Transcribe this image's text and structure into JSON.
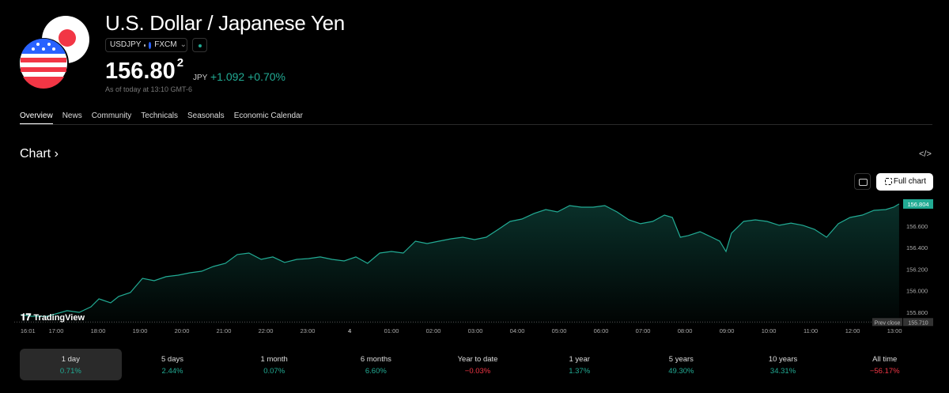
{
  "header": {
    "title": "U.S. Dollar / Japanese Yen",
    "symbol": "USDJPY",
    "exchange": "FXCM",
    "price": "156.80",
    "price_sup": "2",
    "currency": "JPY",
    "change": "+1.092",
    "change_pct": "+0.70%",
    "as_of": "As of today at 13:10 GMT-6"
  },
  "tabs": [
    "Overview",
    "News",
    "Community",
    "Technicals",
    "Seasonals",
    "Economic Calendar"
  ],
  "chart_section": {
    "title": "Chart",
    "full_chart": "Full chart",
    "logo": "TradingView"
  },
  "chart_data": {
    "type": "area",
    "color": "#22ab94",
    "x": [
      0.15,
      0.42,
      0.79,
      1.26,
      1.55,
      1.83,
      2.02,
      2.3,
      2.49,
      2.77,
      3.06,
      3.34,
      3.62,
      3.91,
      4.19,
      4.47,
      4.75,
      5.04,
      5.32,
      5.6,
      5.89,
      6.17,
      6.45,
      6.74,
      7.02,
      7.3,
      7.58,
      7.87,
      8.15,
      8.43,
      8.72,
      9.0,
      9.28,
      9.57,
      9.85,
      10.13,
      10.42,
      10.7,
      10.98,
      11.26,
      11.55,
      11.83,
      12.11,
      12.4,
      12.68,
      12.96,
      13.25,
      13.53,
      13.81,
      14.09,
      14.38,
      14.66,
      14.94,
      15.23,
      15.51,
      15.7,
      15.89,
      16.08,
      16.36,
      16.64,
      16.83,
      16.98,
      17.11,
      17.4,
      17.68,
      17.96,
      18.25,
      18.53,
      18.81,
      19.09,
      19.38,
      19.66,
      19.94,
      20.23,
      20.51,
      20.79,
      20.98,
      21.11
    ],
    "values": [
      155.778,
      155.763,
      155.763,
      155.815,
      155.8,
      155.851,
      155.925,
      155.888,
      155.947,
      155.983,
      156.115,
      156.093,
      156.13,
      156.144,
      156.166,
      156.181,
      156.225,
      156.254,
      156.335,
      156.349,
      156.291,
      156.313,
      156.262,
      156.291,
      156.298,
      156.313,
      156.291,
      156.276,
      156.313,
      156.254,
      156.349,
      156.364,
      156.349,
      156.459,
      156.437,
      156.459,
      156.481,
      156.496,
      156.474,
      156.496,
      156.569,
      156.642,
      156.664,
      156.716,
      156.752,
      156.73,
      156.789,
      156.774,
      156.774,
      156.789,
      156.73,
      156.657,
      156.621,
      156.642,
      156.701,
      156.679,
      156.496,
      156.511,
      156.547,
      156.496,
      156.459,
      156.364,
      156.533,
      156.642,
      156.657,
      156.642,
      156.606,
      156.627,
      156.606,
      156.569,
      156.496,
      156.621,
      156.679,
      156.701,
      156.745,
      156.752,
      156.774,
      156.804
    ],
    "xlim": [
      0,
      21.13
    ],
    "xticks": [
      {
        "value": 0.017,
        "label": "16:01"
      },
      {
        "value": 1,
        "label": "17:00"
      },
      {
        "value": 2,
        "label": "18:00"
      },
      {
        "value": 3,
        "label": "19:00"
      },
      {
        "value": 4,
        "label": "20:00"
      },
      {
        "value": 5,
        "label": "21:00"
      },
      {
        "value": 6,
        "label": "22:00"
      },
      {
        "value": 7,
        "label": "23:00"
      },
      {
        "value": 8,
        "label": "4"
      },
      {
        "value": 9,
        "label": "01:00"
      },
      {
        "value": 10,
        "label": "02:00"
      },
      {
        "value": 11,
        "label": "03:00"
      },
      {
        "value": 12,
        "label": "04:00"
      },
      {
        "value": 13,
        "label": "05:00"
      },
      {
        "value": 14,
        "label": "06:00"
      },
      {
        "value": 15,
        "label": "07:00"
      },
      {
        "value": 16,
        "label": "08:00"
      },
      {
        "value": 17,
        "label": "09:00"
      },
      {
        "value": 18,
        "label": "10:00"
      },
      {
        "value": 19,
        "label": "11:00"
      },
      {
        "value": 20,
        "label": "12:00"
      },
      {
        "value": 21,
        "label": "13:00"
      }
    ],
    "ylim": [
      155.69,
      156.862
    ],
    "yticks": [
      {
        "value": 155.8,
        "label": "155.800"
      },
      {
        "value": 156.0,
        "label": "156.000"
      },
      {
        "value": 156.2,
        "label": "156.200"
      },
      {
        "value": 156.4,
        "label": "156.400"
      },
      {
        "value": 156.6,
        "label": "156.600"
      }
    ],
    "prev_close_label": "Prev close",
    "prev_close": {
      "value": 155.71,
      "label": "155.710"
    }
  },
  "periods": [
    {
      "label": "1 day",
      "change": "0.71%"
    },
    {
      "label": "5 days",
      "change": "2.44%"
    },
    {
      "label": "1 month",
      "change": "0.07%"
    },
    {
      "label": "6 months",
      "change": "6.60%"
    },
    {
      "label": "Year to date",
      "change": "−0.03%"
    },
    {
      "label": "1 year",
      "change": "1.37%"
    },
    {
      "label": "5 years",
      "change": "49.30%"
    },
    {
      "label": "10 years",
      "change": "34.31%"
    },
    {
      "label": "All time",
      "change": "−56.17%"
    }
  ]
}
